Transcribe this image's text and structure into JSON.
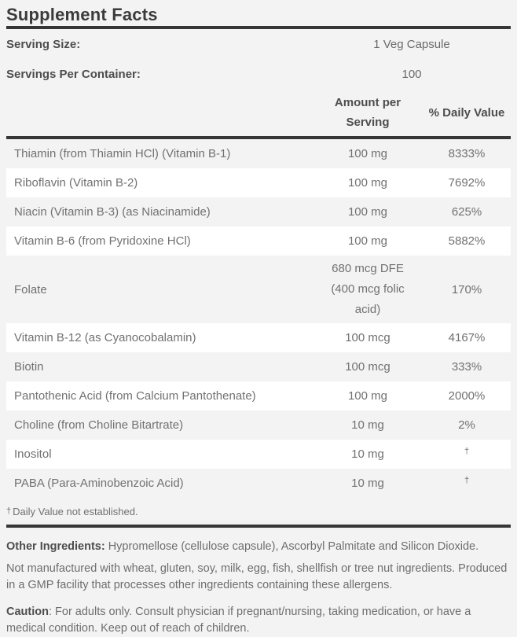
{
  "title": "Supplement Facts",
  "serving": {
    "size_label": "Serving Size:",
    "size_value": "1 Veg Capsule",
    "per_container_label": "Servings Per Container:",
    "per_container_value": "100"
  },
  "table": {
    "headers": {
      "amount": "Amount per Serving",
      "daily_value": "% Daily Value"
    },
    "rows": [
      {
        "name": "Thiamin (from Thiamin HCl) (Vitamin B-1)",
        "amount": "100 mg",
        "dv": "8333%"
      },
      {
        "name": "Riboflavin (Vitamin B-2)",
        "amount": "100 mg",
        "dv": "7692%"
      },
      {
        "name": "Niacin (Vitamin B-3) (as Niacinamide)",
        "amount": "100 mg",
        "dv": "625%"
      },
      {
        "name": "Vitamin B-6 (from Pyridoxine HCl)",
        "amount": "100 mg",
        "dv": "5882%"
      },
      {
        "name": "Folate",
        "amount": "680 mcg DFE (400 mcg folic acid)",
        "dv": "170%"
      },
      {
        "name": "Vitamin B-12 (as Cyanocobalamin)",
        "amount": "100 mcg",
        "dv": "4167%"
      },
      {
        "name": "Biotin",
        "amount": "100 mcg",
        "dv": "333%"
      },
      {
        "name": "Pantothenic Acid (from Calcium Pantothenate)",
        "amount": "100 mg",
        "dv": "2000%"
      },
      {
        "name": "Choline (from Choline Bitartrate)",
        "amount": "10 mg",
        "dv": "2%"
      },
      {
        "name": "Inositol",
        "amount": "10 mg",
        "dv": "†"
      },
      {
        "name": "PABA (Para-Aminobenzoic Acid)",
        "amount": "10 mg",
        "dv": "†"
      }
    ],
    "footnote": {
      "dagger": "†",
      "text": "Daily Value not established."
    }
  },
  "other_ingredients": {
    "label": "Other Ingredients:",
    "text": "Hypromellose (cellulose capsule), Ascorbyl Palmitate and Silicon Dioxide."
  },
  "allergen_statement": "Not manufactured with wheat, gluten, soy, milk, egg, fish, shellfish or tree nut ingredients. Produced in a GMP facility that processes other ingredients containing these allergens.",
  "caution": {
    "label": "Caution",
    "text": ": For adults only. Consult physician if pregnant/nursing, taking medication, or have a medical condition. Keep out of reach of children."
  },
  "colors": {
    "background": "#f3f3f3",
    "row_white": "#ffffff",
    "rule": "#363636",
    "title_text": "#3b3b3b",
    "body_text": "#6f6f6f"
  }
}
